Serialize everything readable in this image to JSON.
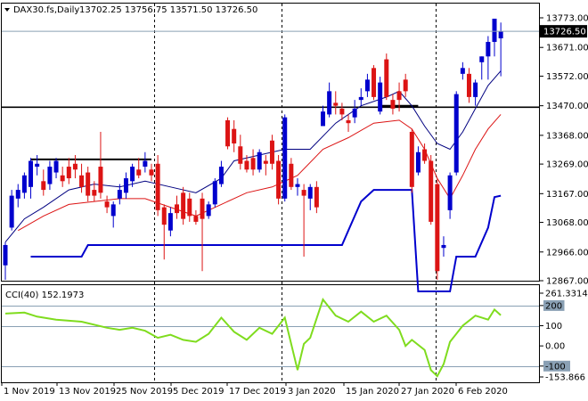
{
  "header": {
    "symbol": "DAX30.fs,Daily",
    "ohlc": "13702.25 13756.75 13571.50 13726.50"
  },
  "cci_header": "CCI(40) 152.1973",
  "price_axis": {
    "ticks": [
      "13773.00",
      "13671.00",
      "13572.00",
      "13470.00",
      "13368.00",
      "13269.00",
      "13167.00",
      "13068.00",
      "12966.00",
      "12867.00"
    ],
    "current_price": "13726.50"
  },
  "cci_axis": {
    "ticks": [
      "261.3314",
      "200",
      "100",
      "0.00",
      "-100",
      "-153.866"
    ]
  },
  "time_axis": {
    "ticks": [
      "1 Nov 2019",
      "13 Nov 2019",
      "25 Nov 2019",
      "5 Dec 2019",
      "17 Dec 2019",
      "3 Jan 2020",
      "15 Jan 2020",
      "27 Jan 2020",
      "6 Feb 2020"
    ]
  },
  "colors": {
    "background": "#ffffff",
    "bull_candle": "#0000cd",
    "bear_candle": "#dc1414",
    "ma_fast": "#000080",
    "ma_slow": "#dc1414",
    "lower_channel": "#0000cd",
    "cci_line": "#7fdc1e",
    "level_line": "#000000",
    "grid": "#000000"
  },
  "chart_data": [
    {
      "type": "candlestick",
      "title": "DAX30.fs,Daily",
      "ylim": [
        12867,
        13773
      ],
      "candles": [
        {
          "o": 12920,
          "h": 13000,
          "l": 12870,
          "c": 12990
        },
        {
          "o": 13050,
          "h": 13180,
          "l": 13040,
          "c": 13160
        },
        {
          "o": 13150,
          "h": 13200,
          "l": 13120,
          "c": 13180
        },
        {
          "o": 13170,
          "h": 13240,
          "l": 13150,
          "c": 13230
        },
        {
          "o": 13190,
          "h": 13290,
          "l": 13150,
          "c": 13280
        },
        {
          "o": 13260,
          "h": 13300,
          "l": 13230,
          "c": 13270
        },
        {
          "o": 13210,
          "h": 13250,
          "l": 13160,
          "c": 13180
        },
        {
          "o": 13200,
          "h": 13280,
          "l": 13180,
          "c": 13260
        },
        {
          "o": 13240,
          "h": 13290,
          "l": 13220,
          "c": 13280
        },
        {
          "o": 13230,
          "h": 13260,
          "l": 13190,
          "c": 13210
        },
        {
          "o": 13260,
          "h": 13290,
          "l": 13200,
          "c": 13220
        },
        {
          "o": 13270,
          "h": 13300,
          "l": 13220,
          "c": 13250
        },
        {
          "o": 13230,
          "h": 13270,
          "l": 13170,
          "c": 13190
        },
        {
          "o": 13240,
          "h": 13260,
          "l": 13140,
          "c": 13160
        },
        {
          "o": 13180,
          "h": 13210,
          "l": 13140,
          "c": 13160
        },
        {
          "o": 13260,
          "h": 13380,
          "l": 13150,
          "c": 13170
        },
        {
          "o": 13140,
          "h": 13160,
          "l": 13100,
          "c": 13120
        },
        {
          "o": 13090,
          "h": 13140,
          "l": 13050,
          "c": 13130
        },
        {
          "o": 13150,
          "h": 13200,
          "l": 13130,
          "c": 13180
        },
        {
          "o": 13170,
          "h": 13240,
          "l": 13150,
          "c": 13220
        },
        {
          "o": 13210,
          "h": 13270,
          "l": 13190,
          "c": 13260
        },
        {
          "o": 13250,
          "h": 13290,
          "l": 13220,
          "c": 13230
        },
        {
          "o": 13260,
          "h": 13310,
          "l": 13240,
          "c": 13280
        },
        {
          "o": 13250,
          "h": 13270,
          "l": 13210,
          "c": 13230
        },
        {
          "o": 13270,
          "h": 13300,
          "l": 13090,
          "c": 13110
        },
        {
          "o": 13120,
          "h": 13130,
          "l": 12940,
          "c": 13060
        },
        {
          "o": 13040,
          "h": 13120,
          "l": 13020,
          "c": 13100
        },
        {
          "o": 13130,
          "h": 13160,
          "l": 13080,
          "c": 13100
        },
        {
          "o": 13170,
          "h": 13190,
          "l": 13060,
          "c": 13080
        },
        {
          "o": 13150,
          "h": 13170,
          "l": 13070,
          "c": 13090
        },
        {
          "o": 13090,
          "h": 13110,
          "l": 13060,
          "c": 13070
        },
        {
          "o": 13150,
          "h": 13170,
          "l": 12900,
          "c": 13080
        },
        {
          "o": 13090,
          "h": 13140,
          "l": 13080,
          "c": 13130
        },
        {
          "o": 13130,
          "h": 13220,
          "l": 13120,
          "c": 13210
        },
        {
          "o": 13200,
          "h": 13280,
          "l": 13190,
          "c": 13260
        },
        {
          "o": 13420,
          "h": 13430,
          "l": 13320,
          "c": 13330
        },
        {
          "o": 13390,
          "h": 13420,
          "l": 13310,
          "c": 13340
        },
        {
          "o": 13330,
          "h": 13370,
          "l": 13250,
          "c": 13270
        },
        {
          "o": 13280,
          "h": 13300,
          "l": 13240,
          "c": 13250
        },
        {
          "o": 13290,
          "h": 13320,
          "l": 13230,
          "c": 13250
        },
        {
          "o": 13250,
          "h": 13320,
          "l": 13240,
          "c": 13310
        },
        {
          "o": 13280,
          "h": 13300,
          "l": 13230,
          "c": 13270
        },
        {
          "o": 13350,
          "h": 13370,
          "l": 13250,
          "c": 13270
        },
        {
          "o": 13280,
          "h": 13300,
          "l": 13130,
          "c": 13150
        },
        {
          "o": 13150,
          "h": 13440,
          "l": 13140,
          "c": 13430
        },
        {
          "o": 13270,
          "h": 13290,
          "l": 13180,
          "c": 13190
        },
        {
          "o": 13190,
          "h": 13220,
          "l": 13160,
          "c": 13200
        },
        {
          "o": 13180,
          "h": 13200,
          "l": 12950,
          "c": 13160
        },
        {
          "o": 13150,
          "h": 13200,
          "l": 13110,
          "c": 13190
        },
        {
          "o": 13190,
          "h": 13210,
          "l": 13100,
          "c": 13120
        },
        {
          "o": 13400,
          "h": 13470,
          "l": 13400,
          "c": 13450
        },
        {
          "o": 13440,
          "h": 13550,
          "l": 13430,
          "c": 13520
        },
        {
          "o": 13480,
          "h": 13520,
          "l": 13440,
          "c": 13470
        },
        {
          "o": 13460,
          "h": 13480,
          "l": 13420,
          "c": 13440
        },
        {
          "o": 13420,
          "h": 13440,
          "l": 13380,
          "c": 13410
        },
        {
          "o": 13430,
          "h": 13490,
          "l": 13410,
          "c": 13460
        },
        {
          "o": 13490,
          "h": 13530,
          "l": 13470,
          "c": 13500
        },
        {
          "o": 13520,
          "h": 13580,
          "l": 13500,
          "c": 13560
        },
        {
          "o": 13600,
          "h": 13610,
          "l": 13490,
          "c": 13500
        },
        {
          "o": 13450,
          "h": 13570,
          "l": 13440,
          "c": 13550
        },
        {
          "o": 13630,
          "h": 13650,
          "l": 13490,
          "c": 13500
        },
        {
          "o": 13490,
          "h": 13510,
          "l": 13440,
          "c": 13460
        },
        {
          "o": 13520,
          "h": 13550,
          "l": 13450,
          "c": 13490
        },
        {
          "o": 13560,
          "h": 13580,
          "l": 13500,
          "c": 13520
        },
        {
          "o": 13380,
          "h": 13390,
          "l": 13170,
          "c": 13190
        },
        {
          "o": 13240,
          "h": 13330,
          "l": 13230,
          "c": 13310
        },
        {
          "o": 13320,
          "h": 13340,
          "l": 13270,
          "c": 13280
        },
        {
          "o": 13280,
          "h": 13300,
          "l": 13060,
          "c": 13070
        },
        {
          "o": 13200,
          "h": 13220,
          "l": 12870,
          "c": 12900
        },
        {
          "o": 12980,
          "h": 13020,
          "l": 12950,
          "c": 12990
        },
        {
          "o": 13110,
          "h": 13240,
          "l": 13080,
          "c": 13230
        },
        {
          "o": 13240,
          "h": 13520,
          "l": 13230,
          "c": 13510
        },
        {
          "o": 13580,
          "h": 13620,
          "l": 13560,
          "c": 13600
        },
        {
          "o": 13580,
          "h": 13600,
          "l": 13480,
          "c": 13500
        },
        {
          "o": 13500,
          "h": 13560,
          "l": 13470,
          "c": 13550
        },
        {
          "o": 13620,
          "h": 13640,
          "l": 13560,
          "c": 13640
        },
        {
          "o": 13640,
          "h": 13710,
          "l": 13560,
          "c": 13690
        },
        {
          "o": 13690,
          "h": 13770,
          "l": 13640,
          "c": 13770
        },
        {
          "o": 13702.25,
          "h": 13756.75,
          "l": 13571.5,
          "c": 13726.5
        }
      ],
      "ma_fast": [
        [
          0,
          13000
        ],
        [
          3,
          13080
        ],
        [
          6,
          13120
        ],
        [
          10,
          13180
        ],
        [
          14,
          13200
        ],
        [
          18,
          13190
        ],
        [
          22,
          13210
        ],
        [
          26,
          13190
        ],
        [
          30,
          13170
        ],
        [
          34,
          13220
        ],
        [
          36,
          13280
        ],
        [
          40,
          13300
        ],
        [
          44,
          13320
        ],
        [
          48,
          13320
        ],
        [
          52,
          13410
        ],
        [
          56,
          13470
        ],
        [
          60,
          13500
        ],
        [
          62,
          13520
        ],
        [
          64,
          13470
        ],
        [
          66,
          13400
        ],
        [
          68,
          13340
        ],
        [
          70,
          13320
        ],
        [
          72,
          13380
        ],
        [
          74,
          13460
        ],
        [
          76,
          13540
        ],
        [
          78,
          13590
        ]
      ],
      "ma_slow": [
        [
          2,
          13040
        ],
        [
          6,
          13090
        ],
        [
          10,
          13130
        ],
        [
          14,
          13140
        ],
        [
          18,
          13150
        ],
        [
          22,
          13150
        ],
        [
          26,
          13120
        ],
        [
          30,
          13090
        ],
        [
          34,
          13130
        ],
        [
          38,
          13170
        ],
        [
          42,
          13190
        ],
        [
          46,
          13230
        ],
        [
          50,
          13320
        ],
        [
          54,
          13360
        ],
        [
          58,
          13410
        ],
        [
          62,
          13420
        ],
        [
          64,
          13390
        ],
        [
          66,
          13320
        ],
        [
          68,
          13220
        ],
        [
          70,
          13150
        ],
        [
          72,
          13230
        ],
        [
          74,
          13320
        ],
        [
          76,
          13390
        ],
        [
          78,
          13440
        ]
      ],
      "channel_low": [
        [
          4,
          12950
        ],
        [
          12,
          12950
        ],
        [
          13,
          12990
        ],
        [
          53,
          12990
        ],
        [
          54,
          13040
        ],
        [
          56,
          13140
        ],
        [
          58,
          13180
        ],
        [
          64,
          13180
        ],
        [
          65,
          12830
        ],
        [
          70,
          12830
        ],
        [
          71,
          12950
        ],
        [
          74,
          12950
        ],
        [
          76,
          13050
        ],
        [
          77,
          13155
        ],
        [
          78,
          13160
        ]
      ],
      "channel_high_segments": [
        [
          [
            4,
            13285
          ],
          [
            23,
            13285
          ]
        ],
        [
          [
            59,
            13470
          ],
          [
            65,
            13470
          ]
        ]
      ],
      "support_level": 13465,
      "cci_title": "CCI(40) 152.1973",
      "cci_ylim": [
        -153.866,
        261.3314
      ],
      "cci_levels": [
        200,
        100,
        -100
      ],
      "cci": [
        [
          0,
          160
        ],
        [
          3,
          165
        ],
        [
          5,
          145
        ],
        [
          8,
          130
        ],
        [
          12,
          120
        ],
        [
          16,
          90
        ],
        [
          18,
          80
        ],
        [
          20,
          90
        ],
        [
          22,
          75
        ],
        [
          24,
          40
        ],
        [
          26,
          55
        ],
        [
          28,
          30
        ],
        [
          30,
          20
        ],
        [
          32,
          60
        ],
        [
          34,
          140
        ],
        [
          36,
          70
        ],
        [
          38,
          30
        ],
        [
          40,
          90
        ],
        [
          42,
          60
        ],
        [
          44,
          140
        ],
        [
          46,
          -120
        ],
        [
          47,
          10
        ],
        [
          48,
          40
        ],
        [
          50,
          230
        ],
        [
          52,
          150
        ],
        [
          54,
          120
        ],
        [
          56,
          170
        ],
        [
          58,
          120
        ],
        [
          60,
          150
        ],
        [
          62,
          80
        ],
        [
          63,
          0
        ],
        [
          64,
          30
        ],
        [
          66,
          -20
        ],
        [
          67,
          -120
        ],
        [
          68,
          -150
        ],
        [
          69,
          -90
        ],
        [
          70,
          20
        ],
        [
          72,
          100
        ],
        [
          74,
          150
        ],
        [
          76,
          130
        ],
        [
          77,
          180
        ],
        [
          78,
          152
        ]
      ]
    }
  ]
}
